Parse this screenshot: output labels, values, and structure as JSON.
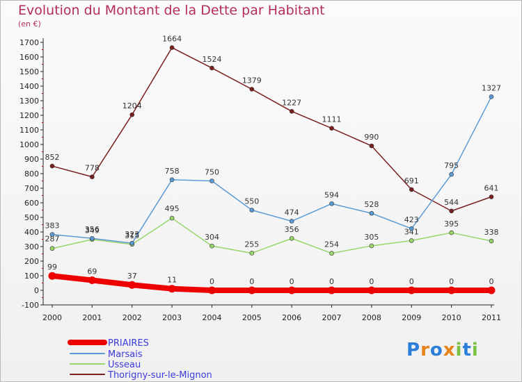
{
  "chart_data": {
    "type": "line",
    "title": "Evolution du Montant de la Dette par Habitant",
    "subtitle": "(en €)",
    "categories": [
      "2000",
      "2001",
      "2002",
      "2003",
      "2004",
      "2005",
      "2006",
      "2007",
      "2008",
      "2009",
      "2010",
      "2011"
    ],
    "ylim": [
      -100,
      1700
    ],
    "yticks": [
      -100,
      0,
      100,
      200,
      300,
      400,
      500,
      600,
      700,
      800,
      900,
      1000,
      1100,
      1200,
      1300,
      1400,
      1500,
      1600,
      1700
    ],
    "grid": false,
    "legend_position": "bottom-left",
    "series": [
      {
        "name": "PRIAIRES",
        "color": "#ee0000",
        "values": [
          99,
          69,
          37,
          11,
          0,
          0,
          0,
          0,
          0,
          0,
          0,
          0
        ]
      },
      {
        "name": "Marsais",
        "color": "#5b9bd5",
        "values": [
          383,
          356,
          323,
          758,
          750,
          550,
          474,
          594,
          528,
          423,
          795,
          1327
        ]
      },
      {
        "name": "Usseau",
        "color": "#98d66a",
        "values": [
          287,
          349,
          315,
          495,
          304,
          255,
          356,
          254,
          305,
          341,
          395,
          338
        ]
      },
      {
        "name": "Thorigny-sur-le-Mignon",
        "color": "#7a1f1f",
        "values": [
          852,
          778,
          1204,
          1664,
          1524,
          1379,
          1227,
          1111,
          990,
          691,
          544,
          641
        ]
      }
    ]
  },
  "logo": {
    "text": "Proxiti",
    "letters": [
      "P",
      "r",
      "o",
      "x",
      "i",
      "t",
      "i"
    ],
    "colors": [
      "#2b7fd9",
      "#e8821a",
      "#2b7fd9",
      "#e8821a",
      "#7ac143",
      "#2b7fd9",
      "#7ac143"
    ]
  }
}
